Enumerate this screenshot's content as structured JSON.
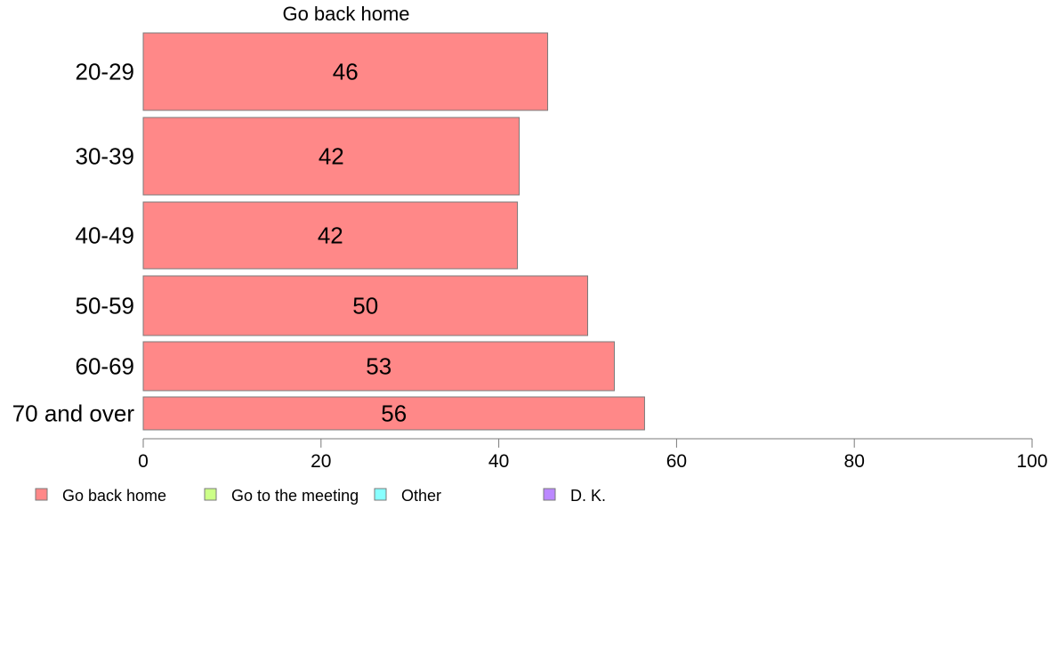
{
  "chart_data": {
    "type": "bar",
    "orientation": "horizontal",
    "panel_title": "Go back home",
    "categories": [
      "20-29",
      "30-39",
      "40-49",
      "50-59",
      "60-69",
      "70 and over"
    ],
    "series": [
      {
        "name": "Go back home",
        "values": [
          45.5,
          42.3,
          42.1,
          50.0,
          53.0,
          56.4
        ],
        "labels": [
          "46",
          "42",
          "42",
          "50",
          "53",
          "56"
        ],
        "color": "#ff8888"
      }
    ],
    "xlim": [
      0,
      100
    ],
    "xticks": [
      0,
      20,
      40,
      60,
      80,
      100
    ],
    "legend": {
      "position": "bottom",
      "items": [
        {
          "label": "Go back home",
          "color": "#ff8888"
        },
        {
          "label": "Go to the meeting",
          "color": "#ccff88"
        },
        {
          "label": "Other",
          "color": "#88ffff"
        },
        {
          "label": "D. K.",
          "color": "#bb88ff"
        }
      ]
    },
    "grid": false
  }
}
